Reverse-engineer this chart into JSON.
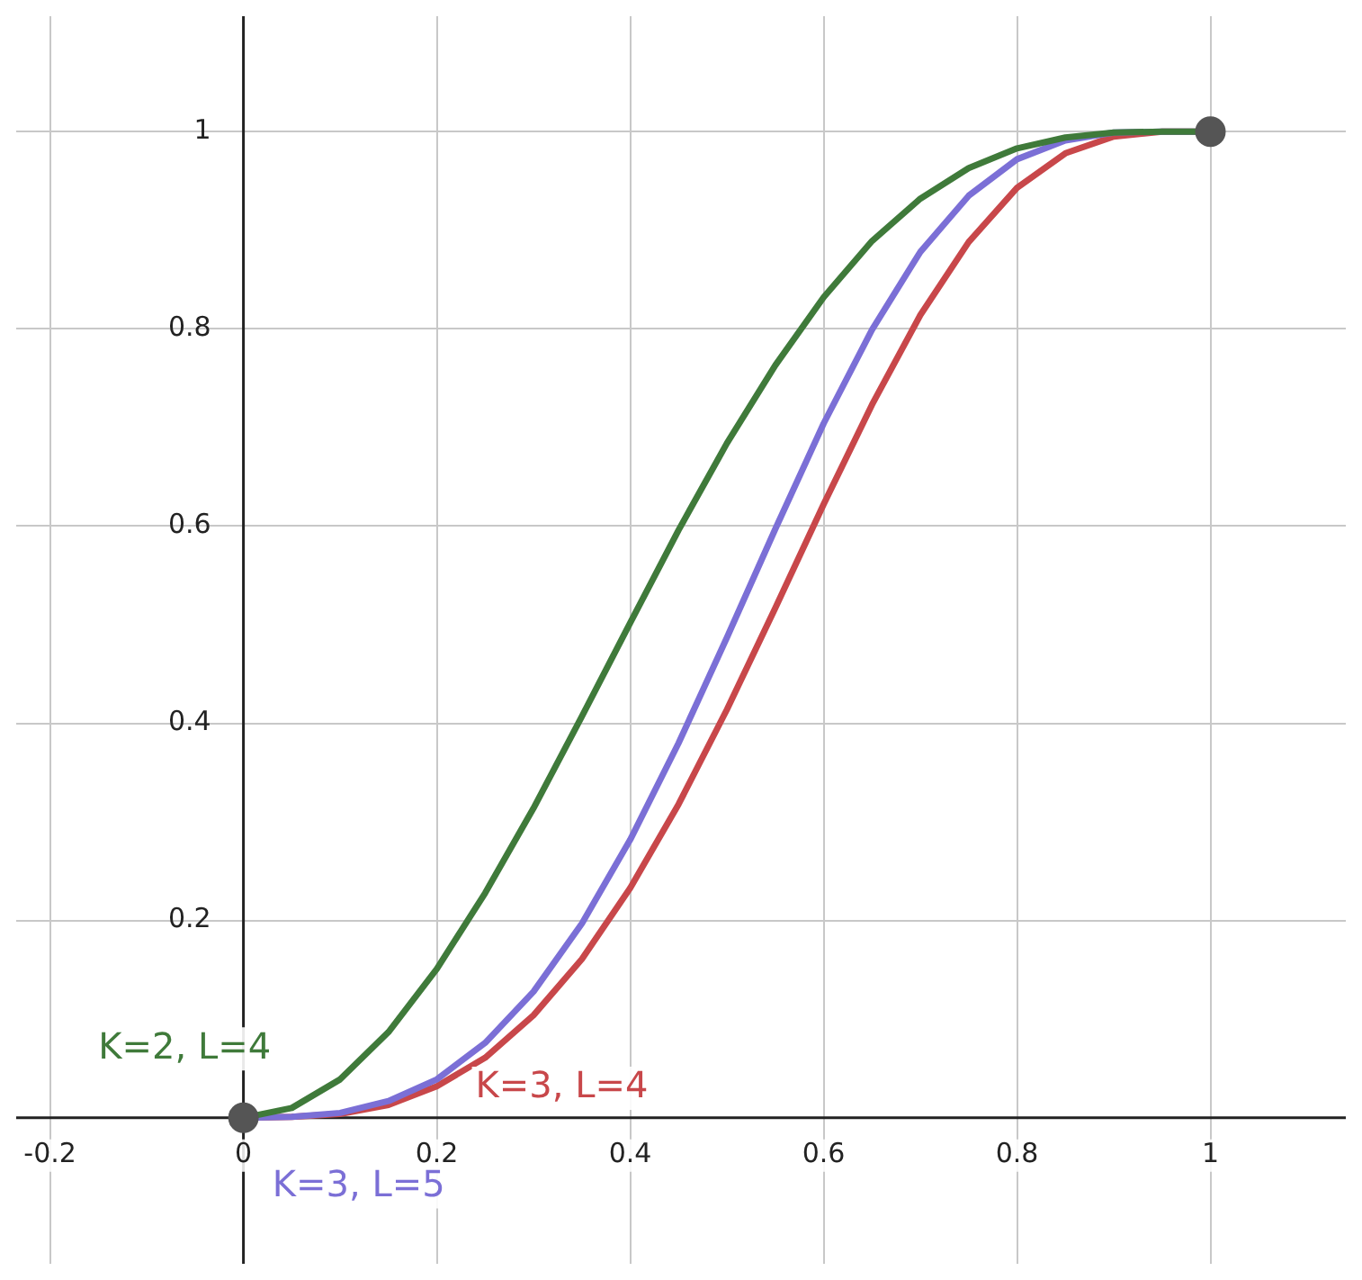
{
  "chart_data": {
    "type": "line",
    "xlim": [
      -0.235,
      1.14
    ],
    "ylim": [
      -0.148,
      1.117
    ],
    "xticks": [
      -0.2,
      0,
      0.2,
      0.4,
      0.6,
      0.8,
      1
    ],
    "yticks": [
      0.2,
      0.4,
      0.6,
      0.8,
      1
    ],
    "grid": true,
    "legend": false,
    "marker": "none",
    "line_style": "solid",
    "x": [
      0,
      0.05,
      0.1,
      0.15,
      0.2,
      0.25,
      0.3,
      0.35,
      0.4,
      0.45,
      0.5,
      0.55,
      0.6,
      0.65,
      0.7,
      0.75,
      0.8,
      0.85,
      0.9,
      0.95,
      1
    ],
    "series": [
      {
        "name": "K=2, L=4",
        "color": "#3f7a3a",
        "values": [
          0,
          0.01,
          0.039,
          0.087,
          0.151,
          0.228,
          0.314,
          0.407,
          0.502,
          0.596,
          0.684,
          0.763,
          0.832,
          0.889,
          0.932,
          0.963,
          0.983,
          0.994,
          0.999,
          1,
          1
        ]
      },
      {
        "name": "K=3, L=5",
        "color": "#7b6fd6",
        "values": [
          0,
          0.001,
          0.005,
          0.017,
          0.039,
          0.076,
          0.128,
          0.197,
          0.282,
          0.38,
          0.487,
          0.597,
          0.704,
          0.799,
          0.878,
          0.935,
          0.972,
          0.991,
          0.999,
          1,
          1
        ]
      },
      {
        "name": "K=3, L=4",
        "color": "#c8474a",
        "values": [
          0,
          0.001,
          0.004,
          0.013,
          0.032,
          0.061,
          0.104,
          0.161,
          0.233,
          0.318,
          0.414,
          0.517,
          0.622,
          0.723,
          0.814,
          0.888,
          0.943,
          0.978,
          0.995,
          1,
          1
        ]
      },
      {
        "type": "scatter",
        "marker": "circle",
        "color": "#555555",
        "x": [
          0,
          1
        ],
        "values": [
          0,
          1
        ]
      }
    ]
  }
}
